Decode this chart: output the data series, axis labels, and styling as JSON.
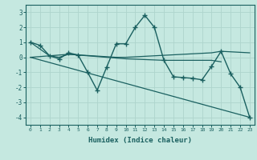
{
  "title": "",
  "xlabel": "Humidex (Indice chaleur)",
  "ylabel": "",
  "xlim": [
    -0.5,
    23.5
  ],
  "ylim": [
    -4.5,
    3.5
  ],
  "yticks": [
    -4,
    -3,
    -2,
    -1,
    0,
    1,
    2,
    3
  ],
  "xticks": [
    0,
    1,
    2,
    3,
    4,
    5,
    6,
    7,
    8,
    9,
    10,
    11,
    12,
    13,
    14,
    15,
    16,
    17,
    18,
    19,
    20,
    21,
    22,
    23
  ],
  "bg_color": "#c5e8e0",
  "grid_color": "#aed4cc",
  "line_color": "#1a6060",
  "line1_x": [
    0,
    1,
    2,
    3,
    4,
    5,
    6,
    7,
    8,
    9,
    10,
    11,
    12,
    13,
    14,
    15,
    16,
    17,
    18,
    19,
    20,
    21,
    22,
    23
  ],
  "line1_y": [
    1.0,
    0.8,
    0.1,
    -0.1,
    0.3,
    0.15,
    -1.0,
    -2.2,
    -0.65,
    0.9,
    0.9,
    2.0,
    2.8,
    2.0,
    -0.2,
    -1.3,
    -1.35,
    -1.4,
    -1.5,
    -0.6,
    0.4,
    -1.1,
    -2.0,
    -4.0
  ],
  "line2_x": [
    0,
    2,
    3,
    4,
    9,
    10,
    19,
    20,
    23
  ],
  "line2_y": [
    1.0,
    0.1,
    0.0,
    0.2,
    0.0,
    0.0,
    0.3,
    0.4,
    0.3
  ],
  "line3_x": [
    0,
    23
  ],
  "line3_y": [
    0.0,
    -4.0
  ],
  "line4_x": [
    0,
    4,
    10,
    14,
    19,
    20
  ],
  "line4_y": [
    0.0,
    0.2,
    -0.1,
    -0.2,
    -0.2,
    -0.3
  ]
}
